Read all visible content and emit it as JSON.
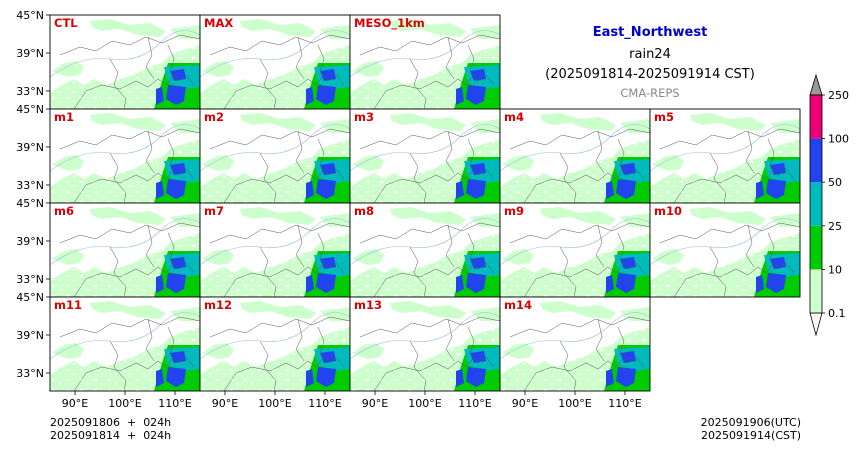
{
  "header": {
    "region": "East_Northwest",
    "variable": "rain24",
    "period": "(2025091814-2025091914 CST)",
    "model": "CMA-REPS"
  },
  "panels": [
    {
      "label": "CTL",
      "row": 0,
      "col": 0
    },
    {
      "label": "MAX",
      "row": 0,
      "col": 1
    },
    {
      "label": "MESO_1km",
      "row": 0,
      "col": 2
    },
    {
      "label": "m1",
      "row": 1,
      "col": 0
    },
    {
      "label": "m2",
      "row": 1,
      "col": 1
    },
    {
      "label": "m3",
      "row": 1,
      "col": 2
    },
    {
      "label": "m4",
      "row": 1,
      "col": 3
    },
    {
      "label": "m5",
      "row": 1,
      "col": 4
    },
    {
      "label": "m6",
      "row": 2,
      "col": 0
    },
    {
      "label": "m7",
      "row": 2,
      "col": 1
    },
    {
      "label": "m8",
      "row": 2,
      "col": 2
    },
    {
      "label": "m9",
      "row": 2,
      "col": 3
    },
    {
      "label": "m10",
      "row": 2,
      "col": 4
    },
    {
      "label": "m11",
      "row": 3,
      "col": 0
    },
    {
      "label": "m12",
      "row": 3,
      "col": 1
    },
    {
      "label": "m13",
      "row": 3,
      "col": 2
    },
    {
      "label": "m14",
      "row": 3,
      "col": 3
    }
  ],
  "axes": {
    "lat_ticks": [
      "45°N",
      "39°N",
      "33°N"
    ],
    "lon_ticks": [
      "90°E",
      "100°E",
      "110°E"
    ]
  },
  "colorbar": {
    "tick_labels": [
      "0.1",
      "10",
      "25",
      "50",
      "100",
      "250"
    ],
    "colors": [
      "#ccffcc",
      "#00cc00",
      "#00bbbb",
      "#2244ee",
      "#ee0077"
    ],
    "over_color": "#999999",
    "under_color": "#ffffff"
  },
  "footer": {
    "left_line1": "2025091806  +  024h",
    "left_line2": "2025091814  +  024h",
    "right_line1": "2025091906(UTC)",
    "right_line2": "2025091914(CST)"
  }
}
